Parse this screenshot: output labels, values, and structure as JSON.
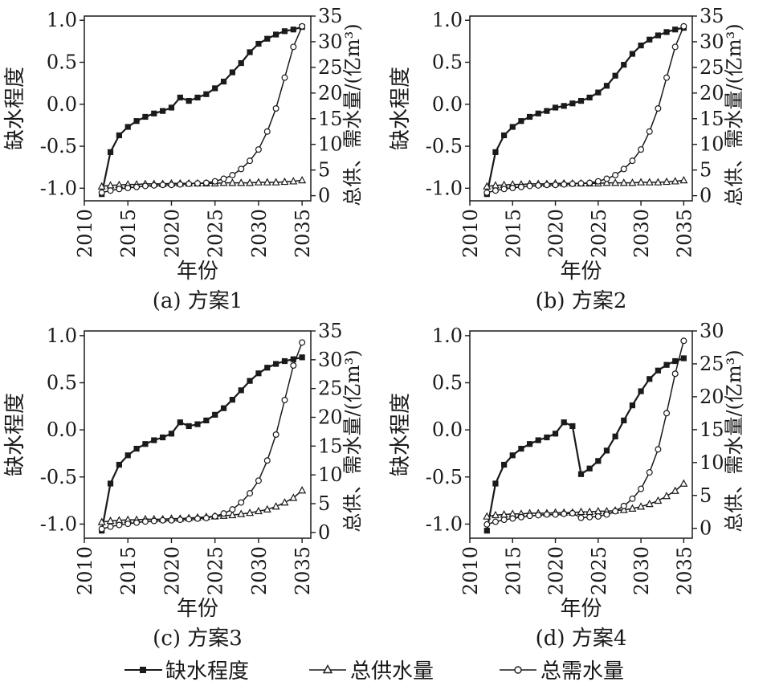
{
  "legend": {
    "items": [
      {
        "label": "缺水程度",
        "marker": "square-filled"
      },
      {
        "label": "总供水量",
        "marker": "triangle-open"
      },
      {
        "label": "总需水量",
        "marker": "circle-open"
      }
    ]
  },
  "chart_data": [
    {
      "type": "line",
      "caption": "(a) 方案1",
      "xlabel": "年份",
      "ylabel_left": "缺水程度",
      "ylabel_right": "总供、需水量/(亿m³)",
      "x_ticks": [
        2010,
        2015,
        2020,
        2025,
        2030,
        2035
      ],
      "y_left_ticks": [
        "-1.0",
        "-0.5",
        "0.0",
        "0.5",
        "1.0"
      ],
      "y_right_ticks": [
        "0",
        "5",
        "10",
        "15",
        "20",
        "25",
        "30",
        "35"
      ],
      "xlim": [
        2010,
        2036
      ],
      "ylim_left": [
        -1.15,
        1.05
      ],
      "ylim_right": [
        -1.0,
        35
      ],
      "x": [
        2012,
        2013,
        2014,
        2015,
        2016,
        2017,
        2018,
        2019,
        2020,
        2021,
        2022,
        2023,
        2024,
        2025,
        2026,
        2027,
        2028,
        2029,
        2030,
        2031,
        2032,
        2033,
        2034,
        2035
      ],
      "series": [
        {
          "name": "缺水程度",
          "axis": "left",
          "values": [
            -1.07,
            -0.57,
            -0.37,
            -0.27,
            -0.2,
            -0.15,
            -0.11,
            -0.08,
            -0.04,
            0.08,
            0.04,
            0.08,
            0.12,
            0.19,
            0.27,
            0.38,
            0.49,
            0.62,
            0.72,
            0.78,
            0.83,
            0.87,
            0.89,
            0.92
          ]
        },
        {
          "name": "总供水量",
          "axis": "right",
          "values": [
            1.8,
            2.0,
            2.1,
            2.2,
            2.2,
            2.3,
            2.3,
            2.3,
            2.4,
            2.4,
            2.4,
            2.4,
            2.4,
            2.4,
            2.5,
            2.5,
            2.5,
            2.5,
            2.6,
            2.6,
            2.6,
            2.7,
            2.8,
            3.0
          ]
        },
        {
          "name": "总需水量",
          "axis": "right",
          "values": [
            0.6,
            1.0,
            1.3,
            1.5,
            1.7,
            1.9,
            2.0,
            2.1,
            2.1,
            2.2,
            2.3,
            2.4,
            2.5,
            2.8,
            3.3,
            4.0,
            5.2,
            6.8,
            9.0,
            12.5,
            17.0,
            23.0,
            29.0,
            33.0
          ]
        }
      ]
    },
    {
      "type": "line",
      "caption": "(b) 方案2",
      "xlabel": "年份",
      "ylabel_left": "缺水程度",
      "ylabel_right": "总供、需水量/(亿m³)",
      "x_ticks": [
        2010,
        2015,
        2020,
        2025,
        2030,
        2035
      ],
      "y_left_ticks": [
        "-1.0",
        "-0.5",
        "0.0",
        "0.5",
        "1.0"
      ],
      "y_right_ticks": [
        "0",
        "5",
        "10",
        "15",
        "20",
        "25",
        "30",
        "35"
      ],
      "xlim": [
        2010,
        2036
      ],
      "ylim_left": [
        -1.15,
        1.05
      ],
      "ylim_right": [
        -1.0,
        35
      ],
      "x": [
        2012,
        2013,
        2014,
        2015,
        2016,
        2017,
        2018,
        2019,
        2020,
        2021,
        2022,
        2023,
        2024,
        2025,
        2026,
        2027,
        2028,
        2029,
        2030,
        2031,
        2032,
        2033,
        2034,
        2035
      ],
      "series": [
        {
          "name": "缺水程度",
          "axis": "left",
          "values": [
            -1.07,
            -0.57,
            -0.37,
            -0.27,
            -0.2,
            -0.15,
            -0.11,
            -0.08,
            -0.04,
            -0.02,
            0.01,
            0.04,
            0.08,
            0.14,
            0.22,
            0.34,
            0.47,
            0.6,
            0.7,
            0.77,
            0.82,
            0.86,
            0.89,
            0.91
          ]
        },
        {
          "name": "总供水量",
          "axis": "right",
          "values": [
            1.8,
            2.0,
            2.1,
            2.2,
            2.2,
            2.3,
            2.3,
            2.3,
            2.4,
            2.4,
            2.4,
            2.4,
            2.4,
            2.4,
            2.5,
            2.5,
            2.5,
            2.5,
            2.6,
            2.6,
            2.6,
            2.7,
            2.8,
            3.0
          ]
        },
        {
          "name": "总需水量",
          "axis": "right",
          "values": [
            0.6,
            1.0,
            1.3,
            1.5,
            1.7,
            1.9,
            2.0,
            2.1,
            2.1,
            2.2,
            2.3,
            2.4,
            2.5,
            2.8,
            3.3,
            4.0,
            5.2,
            6.8,
            9.0,
            12.5,
            17.0,
            23.0,
            29.0,
            33.0
          ]
        }
      ]
    },
    {
      "type": "line",
      "caption": "(c) 方案3",
      "xlabel": "年份",
      "ylabel_left": "缺水程度",
      "ylabel_right": "总供、需水量/(亿m³)",
      "x_ticks": [
        2010,
        2015,
        2020,
        2025,
        2030,
        2035
      ],
      "y_left_ticks": [
        "-1.0",
        "-0.5",
        "0.0",
        "0.5",
        "1.0"
      ],
      "y_right_ticks": [
        "0",
        "5",
        "10",
        "15",
        "20",
        "25",
        "30",
        "35"
      ],
      "xlim": [
        2010,
        2036
      ],
      "ylim_left": [
        -1.15,
        1.05
      ],
      "ylim_right": [
        -1.0,
        35
      ],
      "x": [
        2012,
        2013,
        2014,
        2015,
        2016,
        2017,
        2018,
        2019,
        2020,
        2021,
        2022,
        2023,
        2024,
        2025,
        2026,
        2027,
        2028,
        2029,
        2030,
        2031,
        2032,
        2033,
        2034,
        2035
      ],
      "series": [
        {
          "name": "缺水程度",
          "axis": "left",
          "values": [
            -1.07,
            -0.57,
            -0.37,
            -0.27,
            -0.2,
            -0.15,
            -0.11,
            -0.08,
            -0.04,
            0.08,
            0.04,
            0.06,
            0.1,
            0.16,
            0.23,
            0.32,
            0.42,
            0.52,
            0.6,
            0.66,
            0.7,
            0.73,
            0.75,
            0.77
          ]
        },
        {
          "name": "总供水量",
          "axis": "right",
          "values": [
            1.8,
            2.0,
            2.1,
            2.2,
            2.2,
            2.3,
            2.3,
            2.3,
            2.4,
            2.4,
            2.5,
            2.6,
            2.7,
            2.8,
            2.9,
            3.0,
            3.2,
            3.4,
            3.7,
            4.0,
            4.5,
            5.2,
            6.0,
            7.3
          ]
        },
        {
          "name": "总需水量",
          "axis": "right",
          "values": [
            0.6,
            1.0,
            1.3,
            1.5,
            1.7,
            1.9,
            2.0,
            2.1,
            2.1,
            2.2,
            2.3,
            2.4,
            2.5,
            2.8,
            3.3,
            4.0,
            5.2,
            6.8,
            9.0,
            12.5,
            17.0,
            23.0,
            29.0,
            33.0
          ]
        }
      ]
    },
    {
      "type": "line",
      "caption": "(d) 方案4",
      "xlabel": "年份",
      "ylabel_left": "缺水程度",
      "ylabel_right": "总供、需水量/(亿m³)",
      "x_ticks": [
        2010,
        2015,
        2020,
        2025,
        2030,
        2035
      ],
      "y_left_ticks": [
        "-1.0",
        "-0.5",
        "0.0",
        "0.5",
        "1.0"
      ],
      "y_right_ticks": [
        "0",
        "5",
        "10",
        "15",
        "20",
        "25",
        "30"
      ],
      "xlim": [
        2010,
        2036
      ],
      "ylim_left": [
        -1.15,
        1.05
      ],
      "ylim_right": [
        -1.5,
        30
      ],
      "x": [
        2012,
        2013,
        2014,
        2015,
        2016,
        2017,
        2018,
        2019,
        2020,
        2021,
        2022,
        2023,
        2024,
        2025,
        2026,
        2027,
        2028,
        2029,
        2030,
        2031,
        2032,
        2033,
        2034,
        2035
      ],
      "series": [
        {
          "name": "缺水程度",
          "axis": "left",
          "values": [
            -1.07,
            -0.57,
            -0.37,
            -0.27,
            -0.2,
            -0.15,
            -0.11,
            -0.08,
            -0.04,
            0.08,
            0.04,
            -0.47,
            -0.41,
            -0.33,
            -0.22,
            -0.07,
            0.1,
            0.26,
            0.41,
            0.54,
            0.63,
            0.69,
            0.73,
            0.76
          ]
        },
        {
          "name": "总供水量",
          "axis": "right",
          "values": [
            1.8,
            2.0,
            2.1,
            2.2,
            2.2,
            2.3,
            2.3,
            2.3,
            2.4,
            2.4,
            2.4,
            2.5,
            2.5,
            2.6,
            2.6,
            2.7,
            2.8,
            3.0,
            3.3,
            3.7,
            4.2,
            4.9,
            5.7,
            6.8
          ]
        },
        {
          "name": "总需水量",
          "axis": "right",
          "values": [
            0.6,
            1.0,
            1.3,
            1.5,
            1.7,
            1.9,
            2.0,
            2.1,
            2.1,
            2.2,
            2.3,
            1.6,
            1.7,
            1.8,
            2.1,
            2.6,
            3.4,
            4.5,
            6.0,
            8.5,
            12.0,
            17.5,
            23.5,
            28.5
          ]
        }
      ]
    }
  ]
}
